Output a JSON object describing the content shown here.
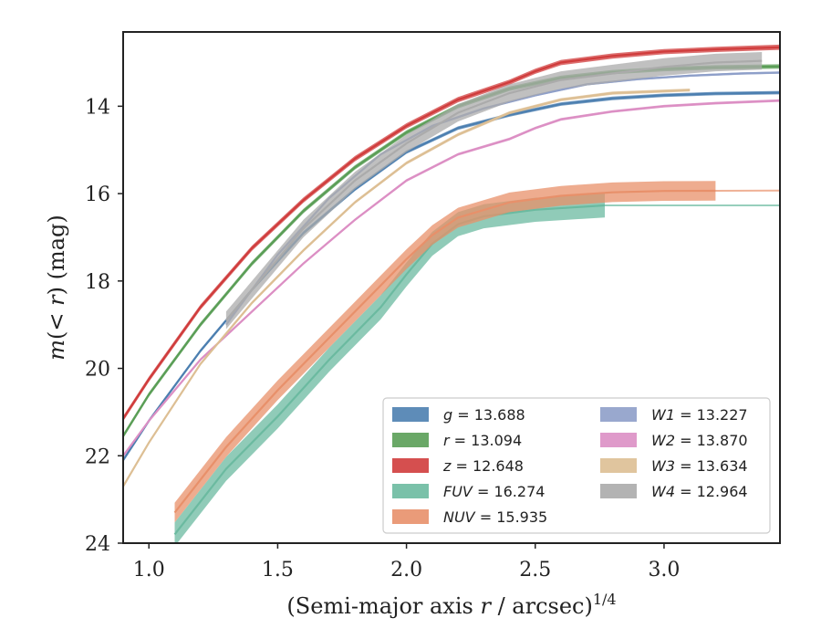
{
  "chart_data": {
    "type": "line",
    "xlabel": "(Semi-major axis r / arcsec)^1/4",
    "ylabel": "m(< r) (mag)",
    "xlim": [
      0.9,
      3.45
    ],
    "ylim": [
      24,
      12.3
    ],
    "y_inverted": true,
    "xticks": [
      "1.0",
      "1.5",
      "2.0",
      "2.5",
      "3.0"
    ],
    "yticks": [
      "14",
      "16",
      "18",
      "20",
      "22",
      "24"
    ],
    "grid": false,
    "legend_position": "lower-right",
    "series": [
      {
        "name": "g",
        "label": "g = 13.688",
        "color": "#4c7fb0",
        "x": [
          0.9,
          1.0,
          1.2,
          1.4,
          1.6,
          1.8,
          2.0,
          2.2,
          2.4,
          2.6,
          2.8,
          3.0,
          3.2,
          3.45
        ],
        "y": [
          22.1,
          21.2,
          19.6,
          18.2,
          16.9,
          15.9,
          15.05,
          14.5,
          14.2,
          13.95,
          13.82,
          13.75,
          13.71,
          13.69
        ],
        "band": 0.08
      },
      {
        "name": "r",
        "label": "r = 13.094",
        "color": "#5a9e56",
        "x": [
          0.9,
          1.0,
          1.2,
          1.4,
          1.6,
          1.8,
          2.0,
          2.2,
          2.4,
          2.6,
          2.8,
          3.0,
          3.2,
          3.45
        ],
        "y": [
          21.55,
          20.6,
          19.0,
          17.6,
          16.4,
          15.4,
          14.6,
          14.0,
          13.6,
          13.35,
          13.22,
          13.15,
          13.11,
          13.09
        ],
        "band": 0.1
      },
      {
        "name": "z",
        "label": "z = 12.648",
        "color": "#d03c3c",
        "x": [
          0.9,
          1.0,
          1.2,
          1.4,
          1.6,
          1.8,
          2.0,
          2.2,
          2.4,
          2.5,
          2.6,
          2.8,
          3.0,
          3.2,
          3.45
        ],
        "y": [
          21.15,
          20.25,
          18.6,
          17.25,
          16.15,
          15.2,
          14.45,
          13.85,
          13.45,
          13.2,
          13.0,
          12.85,
          12.75,
          12.7,
          12.65
        ],
        "band": 0.12
      },
      {
        "name": "FUV",
        "label": "FUV = 16.274",
        "color": "#6bbaa0",
        "x": [
          1.1,
          1.3,
          1.5,
          1.7,
          1.9,
          2.0,
          2.1,
          2.2,
          2.3,
          2.5,
          2.77
        ],
        "y": [
          23.8,
          22.3,
          21.1,
          19.8,
          18.6,
          17.85,
          17.15,
          16.7,
          16.52,
          16.37,
          16.27
        ],
        "band": 0.55,
        "tail_x": [
          2.77,
          3.45
        ],
        "tail_y": [
          16.27,
          16.27
        ]
      },
      {
        "name": "NUV",
        "label": "NUV = 15.935",
        "color": "#e8906a",
        "x": [
          1.1,
          1.3,
          1.5,
          1.7,
          1.9,
          2.0,
          2.1,
          2.2,
          2.4,
          2.6,
          2.8,
          3.0,
          3.2
        ],
        "y": [
          23.3,
          21.8,
          20.5,
          19.3,
          18.1,
          17.5,
          16.95,
          16.55,
          16.2,
          16.05,
          15.97,
          15.94,
          15.935
        ],
        "band": 0.45,
        "tail_x": [
          3.2,
          3.45
        ],
        "tail_y": [
          15.935,
          15.93
        ]
      },
      {
        "name": "W1",
        "label": "W1 = 13.227",
        "color": "#8e9fc9",
        "x": [
          1.3,
          1.5,
          1.7,
          1.9,
          2.1,
          2.3,
          2.5,
          2.7,
          2.9,
          3.1,
          3.3,
          3.45
        ],
        "y": [
          19.0,
          17.4,
          16.1,
          15.1,
          14.45,
          14.05,
          13.75,
          13.5,
          13.38,
          13.3,
          13.25,
          13.23
        ],
        "band": 0.05
      },
      {
        "name": "W2",
        "label": "W2 = 13.870",
        "color": "#dc8fc4",
        "x": [
          0.9,
          1.0,
          1.2,
          1.4,
          1.6,
          1.8,
          2.0,
          2.2,
          2.4,
          2.5,
          2.6,
          2.8,
          3.0,
          3.2,
          3.45
        ],
        "y": [
          22.0,
          21.2,
          19.8,
          18.7,
          17.6,
          16.6,
          15.7,
          15.1,
          14.75,
          14.5,
          14.3,
          14.12,
          14.0,
          13.93,
          13.87
        ],
        "band": 0.06
      },
      {
        "name": "W3",
        "label": "W3 = 13.634",
        "color": "#ddbf94",
        "x": [
          0.9,
          1.0,
          1.2,
          1.4,
          1.6,
          1.8,
          2.0,
          2.2,
          2.4,
          2.6,
          2.8,
          3.1
        ],
        "y": [
          22.7,
          21.7,
          19.9,
          18.5,
          17.3,
          16.2,
          15.3,
          14.65,
          14.15,
          13.85,
          13.7,
          13.63
        ],
        "band": 0.07
      },
      {
        "name": "W4",
        "label": "W4 = 12.964",
        "color": "#ababab",
        "x": [
          1.3,
          1.4,
          1.6,
          1.8,
          2.0,
          2.2,
          2.4,
          2.6,
          2.8,
          3.0,
          3.2,
          3.38
        ],
        "y": [
          18.9,
          18.2,
          16.8,
          15.7,
          14.85,
          14.15,
          13.7,
          13.4,
          13.25,
          13.1,
          13.0,
          12.96
        ],
        "band": 0.4
      }
    ]
  }
}
